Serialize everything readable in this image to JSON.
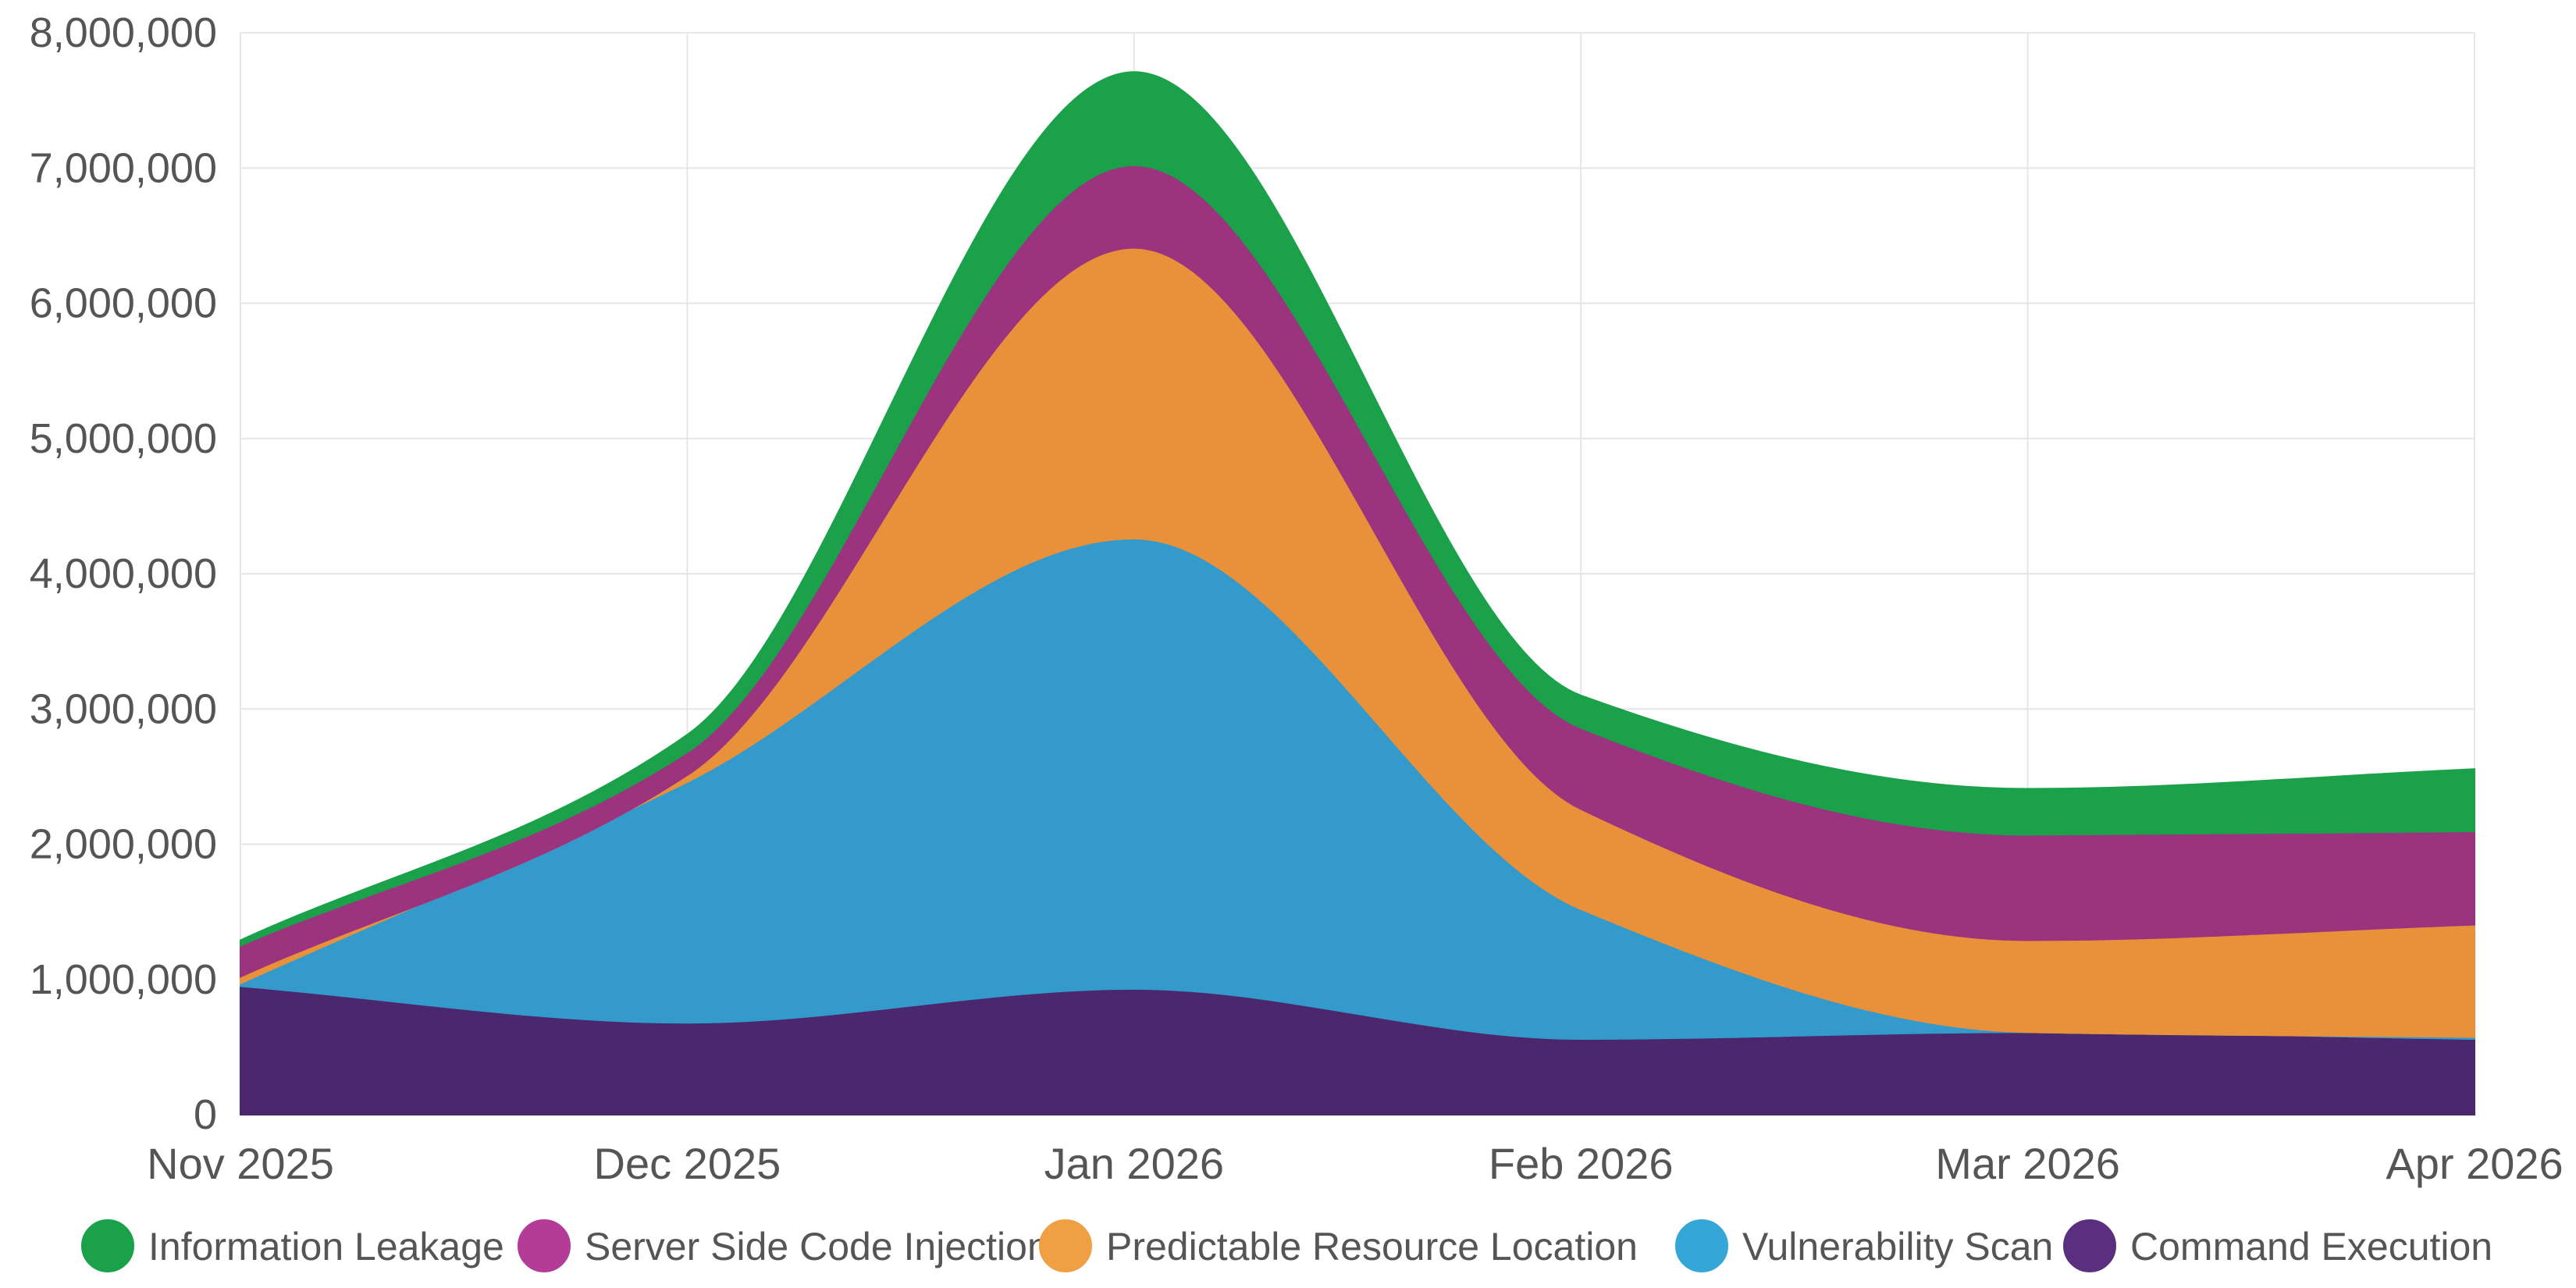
{
  "chart_data": {
    "type": "area",
    "stacked": true,
    "x": [
      "Nov 2025",
      "Dec 2025",
      "Jan 2026",
      "Feb 2026",
      "Mar 2026",
      "Apr 2026"
    ],
    "y_ticks": [
      "0",
      "1,000,000",
      "2,000,000",
      "3,000,000",
      "4,000,000",
      "5,000,000",
      "6,000,000",
      "7,000,000",
      "8,000,000"
    ],
    "ylim": [
      0,
      8000000
    ],
    "grid": true,
    "legend_position": "bottom",
    "series": [
      {
        "name": "Command Execution",
        "color": "#4b286d",
        "values": [
          950000,
          680000,
          930000,
          560000,
          610000,
          560000
        ]
      },
      {
        "name": "Vulnerability Scan",
        "color": "#339acb",
        "values": [
          20000,
          1780000,
          3330000,
          960000,
          0,
          15000
        ]
      },
      {
        "name": "Predictable Resource Location",
        "color": "#e9913a",
        "values": [
          50000,
          50000,
          2150000,
          740000,
          680000,
          830000
        ]
      },
      {
        "name": "Server Side Code Injection",
        "color": "#9b337e",
        "values": [
          230000,
          170000,
          610000,
          600000,
          780000,
          690000
        ]
      },
      {
        "name": "Information Leakage",
        "color": "#1aa14a",
        "values": [
          40000,
          130000,
          690000,
          240000,
          340000,
          460000
        ]
      }
    ],
    "legend_order": [
      "Information Leakage",
      "Server Side Code Injection",
      "Predictable Resource Location",
      "Vulnerability Scan",
      "Command Execution"
    ],
    "legend_colors": {
      "Information Leakage": "#1aa14a",
      "Server Side Code Injection": "#b43c96",
      "Predictable Resource Location": "#f0a043",
      "Vulnerability Scan": "#35a6d8",
      "Command Execution": "#5a2f80"
    }
  }
}
